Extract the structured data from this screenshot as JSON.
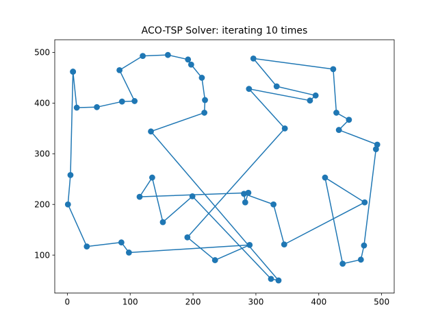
{
  "chart_data": {
    "type": "line",
    "title": "ACO-TSP Solver: iterating 10 times",
    "xlabel": "",
    "ylabel": "",
    "xlim": [
      -20,
      520
    ],
    "ylim": [
      25,
      525
    ],
    "xticks": [
      0,
      100,
      200,
      300,
      400,
      500
    ],
    "yticks": [
      100,
      200,
      300,
      400,
      500
    ],
    "grid": false,
    "legend": "none",
    "colors": {
      "line": "#1f77b4",
      "marker": "#1f77b4",
      "axes": "#000000",
      "background": "#ffffff"
    },
    "series": [
      {
        "marker": "circle",
        "x": [
          9,
          15,
          47,
          87,
          107,
          83,
          120,
          160,
          192,
          197,
          214,
          219,
          218,
          133,
          336,
          324,
          199,
          152,
          135,
          115,
          288,
          283,
          281,
          328,
          345,
          473,
          410,
          438,
          467,
          472,
          491,
          493,
          432,
          448,
          428,
          423,
          296,
          333,
          395,
          386,
          289,
          346,
          191,
          235,
          290,
          98,
          86,
          31,
          1,
          5,
          9
        ],
        "y": [
          462,
          391,
          392,
          403,
          404,
          465,
          493,
          495,
          486,
          476,
          450,
          406,
          381,
          344,
          50,
          53,
          216,
          165,
          253,
          215,
          223,
          204,
          221,
          200,
          121,
          204,
          253,
          83,
          91,
          119,
          309,
          318,
          347,
          367,
          381,
          467,
          488,
          433,
          415,
          405,
          428,
          350,
          135,
          90,
          120,
          105,
          125,
          117,
          200,
          258,
          462
        ]
      }
    ]
  }
}
